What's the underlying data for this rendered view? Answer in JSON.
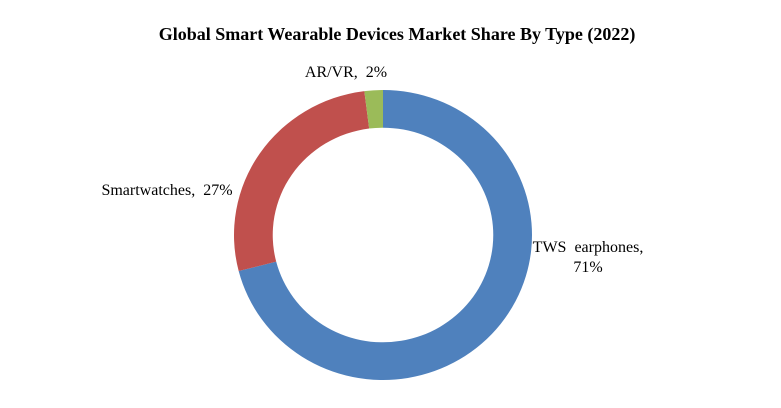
{
  "page": {
    "background_color": "#FFFFFF"
  },
  "chart_data": {
    "type": "pie",
    "subtype": "donut",
    "title": "Global Smart Wearable Devices Market Share By Type (2022)",
    "categories": [
      "TWS earphones",
      "Smartwatches",
      "AR/VR"
    ],
    "values": [
      71,
      27,
      2
    ],
    "value_unit": "%",
    "colors": [
      "#4F81BD",
      "#C0504D",
      "#9BBB59"
    ],
    "start_angle_deg": 0,
    "direction": "clockwise",
    "donut_hole_ratio": 0.74,
    "legend_position": "none",
    "grid": "off",
    "data_labels": {
      "arvr": "AR/VR, 2%",
      "smartwatches": "Smartwatches, 27%",
      "tws_line1": "TWS earphones,",
      "tws_line2": "71%"
    }
  }
}
